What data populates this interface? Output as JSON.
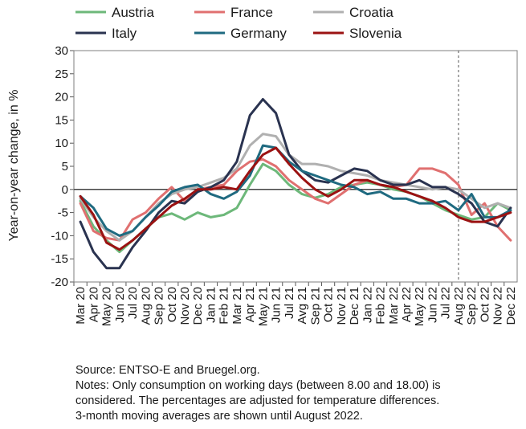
{
  "chart_data": {
    "type": "line",
    "title": "",
    "ylabel": "Year-on-year change, in %",
    "xlabel": "",
    "ylim": [
      -20,
      30
    ],
    "yticks": [
      -20,
      -15,
      -10,
      -5,
      0,
      5,
      10,
      15,
      20,
      25,
      30
    ],
    "grid": false,
    "legend_position": "top",
    "categories": [
      "Mar 20",
      "Apr 20",
      "May 20",
      "Jun 20",
      "Jul 20",
      "Aug 20",
      "Sep 20",
      "Oct 20",
      "Nov 20",
      "Dec 20",
      "Jan 21",
      "Feb 21",
      "Mar 21",
      "Apr 21",
      "May 21",
      "Jun 21",
      "Jul 21",
      "Avg 21",
      "Sep 21",
      "Oct 21",
      "Nov 21",
      "Dec 21",
      "Jan 22",
      "Feb 22",
      "Mar 22",
      "Apr 22",
      "May 22",
      "Jun 22",
      "Jul 22",
      "Aug 22",
      "Sep 22",
      "Oct 22",
      "Nov 22",
      "Dec 22"
    ],
    "vline_at": "Aug 22",
    "series": [
      {
        "name": "Austria",
        "color": "#6db87a",
        "values": [
          -2.5,
          -8,
          -11,
          -13.5,
          -11,
          -8.5,
          -6,
          -5.2,
          -6.5,
          -5,
          -6,
          -5.5,
          -4,
          1,
          5.5,
          4,
          1,
          -1,
          -1.8,
          -1,
          0.5,
          1,
          1.5,
          1,
          0,
          -0.5,
          -1.5,
          -3,
          -4.5,
          -5.5,
          -6.5,
          -6,
          -3,
          -4.5
        ]
      },
      {
        "name": "France",
        "color": "#e07070",
        "values": [
          -3,
          -9,
          -10.5,
          -11,
          -6.5,
          -5,
          -2,
          0.5,
          -2.5,
          0,
          0.5,
          1,
          4,
          6,
          6.5,
          5,
          2,
          0,
          -2,
          -3,
          -1,
          1,
          2,
          1,
          0.5,
          1,
          4.5,
          4.5,
          3.5,
          1,
          -5.5,
          -3,
          -8,
          -11
        ]
      },
      {
        "name": "Croatia",
        "color": "#b0b0b0",
        "values": [
          -2,
          -6,
          -9,
          -11,
          -9,
          -6,
          -3,
          -1,
          0,
          0.5,
          1.5,
          2.5,
          4.5,
          9.5,
          12,
          11.5,
          7.5,
          5.5,
          5.5,
          5,
          4,
          3.5,
          3,
          2,
          1.5,
          1,
          0.5,
          0,
          0.5,
          0,
          -2,
          -4,
          -3,
          -4
        ]
      },
      {
        "name": "Italy",
        "color": "#2a3350",
        "values": [
          -7,
          -13.5,
          -17,
          -17,
          -12.5,
          -9,
          -5,
          -2.5,
          -3,
          -0.5,
          0.5,
          2,
          6,
          16,
          19.5,
          16.5,
          7.5,
          4,
          2,
          1.5,
          3,
          4.5,
          4,
          2,
          1,
          1,
          2,
          0.5,
          0.5,
          -1,
          -3,
          -7,
          -8,
          -4
        ]
      },
      {
        "name": "Germany",
        "color": "#1f6a80",
        "values": [
          -1.5,
          -4,
          -8.5,
          -10,
          -9,
          -6,
          -3.5,
          -0.5,
          0.5,
          1,
          -1,
          -2,
          -0.5,
          3,
          9.5,
          9,
          6,
          4,
          3,
          2,
          1,
          0.5,
          -1,
          -0.5,
          -2,
          -2,
          -3,
          -3,
          -2.5,
          -4.5,
          -1,
          -6,
          -6,
          -4.5
        ]
      },
      {
        "name": "Slovenia",
        "color": "#9b1212",
        "values": [
          -1.5,
          -5.5,
          -11.5,
          -13,
          -11,
          -8.5,
          -6,
          -3.5,
          -2,
          0,
          0,
          0.5,
          0,
          4,
          7.5,
          9,
          5.5,
          2.5,
          0,
          -1.5,
          0,
          2,
          2,
          1,
          0.5,
          -0.5,
          -1.5,
          -2.5,
          -4,
          -6,
          -7,
          -7,
          -6,
          -5
        ]
      }
    ],
    "annotations": []
  },
  "notes": {
    "source": "Source: ENTSO-E and Bruegel.org.",
    "line1": "Notes: Only consumption on working days (between 8.00 and 18.00) is",
    "line2": "considered. The percentages are adjusted for temperature differences.",
    "line3": "3-month moving averages are shown until August 2022."
  }
}
